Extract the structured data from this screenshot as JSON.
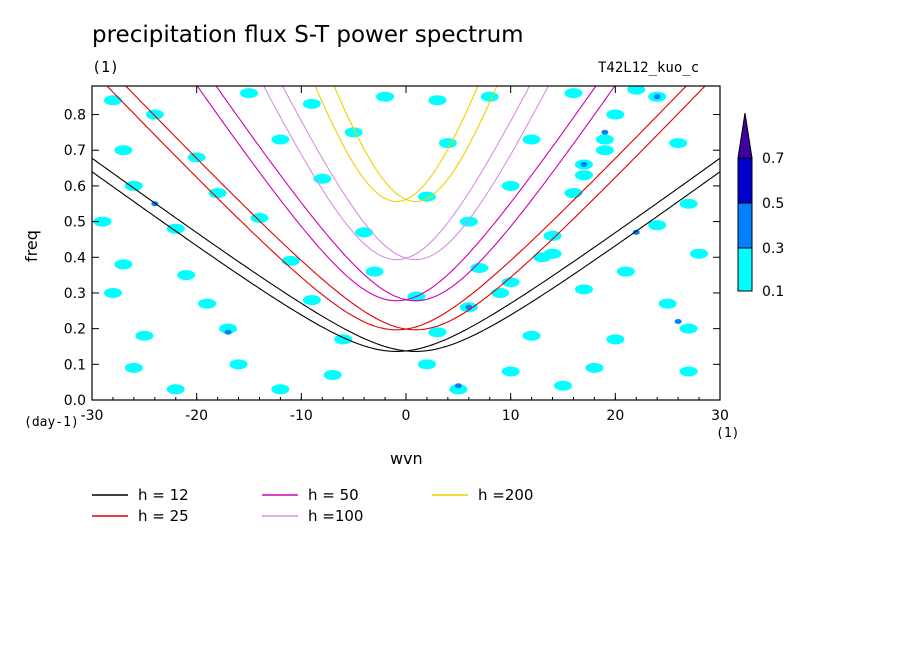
{
  "chart_data": {
    "type": "heatmap",
    "title": "precipitation flux S-T power spectrum",
    "subtitle": "(1)",
    "run_label": "T42L12_kuo_c",
    "xlabel": "wvn",
    "ylabel": "freq",
    "x_unit": "(1)",
    "y_unit": "(day-1)",
    "xlim": [
      -30,
      30
    ],
    "ylim": [
      0,
      0.88
    ],
    "x_ticks": [
      -30,
      -20,
      -10,
      0,
      10,
      20,
      30
    ],
    "y_ticks": [
      0.0,
      0.1,
      0.2,
      0.3,
      0.4,
      0.5,
      0.6,
      0.7,
      0.8
    ],
    "x_tick_labels": [
      "-30",
      "-20",
      "-10",
      "0",
      "10",
      "20",
      "30"
    ],
    "y_tick_labels": [
      "0.0",
      "0.1",
      "0.2",
      "0.3",
      "0.4",
      "0.5",
      "0.6",
      "0.7",
      "0.8"
    ],
    "colorbar": {
      "labels": [
        "0.1",
        "0.3",
        "0.5",
        "0.7"
      ],
      "colors": [
        "#00ffff",
        "#0080ff",
        "#0000cc",
        "#4000a0"
      ]
    },
    "contour_patches": [
      {
        "x": -28,
        "y": 0.84,
        "level": 0
      },
      {
        "x": -24,
        "y": 0.8,
        "level": 0
      },
      {
        "x": -15,
        "y": 0.86,
        "level": 0
      },
      {
        "x": -9,
        "y": 0.83,
        "level": 0
      },
      {
        "x": -2,
        "y": 0.85,
        "level": 0
      },
      {
        "x": 3,
        "y": 0.84,
        "level": 0
      },
      {
        "x": 8,
        "y": 0.85,
        "level": 0
      },
      {
        "x": 16,
        "y": 0.86,
        "level": 0
      },
      {
        "x": 22,
        "y": 0.87,
        "level": 0
      },
      {
        "x": -27,
        "y": 0.7,
        "level": 0
      },
      {
        "x": -20,
        "y": 0.68,
        "level": 0
      },
      {
        "x": -12,
        "y": 0.73,
        "level": 0
      },
      {
        "x": -5,
        "y": 0.75,
        "level": 0
      },
      {
        "x": 4,
        "y": 0.72,
        "level": 0
      },
      {
        "x": 12,
        "y": 0.73,
        "level": 0
      },
      {
        "x": 19,
        "y": 0.7,
        "level": 0
      },
      {
        "x": 26,
        "y": 0.72,
        "level": 0
      },
      {
        "x": -26,
        "y": 0.6,
        "level": 0
      },
      {
        "x": -18,
        "y": 0.58,
        "level": 0
      },
      {
        "x": -8,
        "y": 0.62,
        "level": 0
      },
      {
        "x": 2,
        "y": 0.57,
        "level": 0
      },
      {
        "x": 10,
        "y": 0.6,
        "level": 0
      },
      {
        "x": 17,
        "y": 0.63,
        "level": 0
      },
      {
        "x": 27,
        "y": 0.55,
        "level": 0
      },
      {
        "x": -29,
        "y": 0.5,
        "level": 0
      },
      {
        "x": -22,
        "y": 0.48,
        "level": 0
      },
      {
        "x": -14,
        "y": 0.51,
        "level": 0
      },
      {
        "x": -4,
        "y": 0.47,
        "level": 0
      },
      {
        "x": 6,
        "y": 0.5,
        "level": 0
      },
      {
        "x": 14,
        "y": 0.46,
        "level": 0
      },
      {
        "x": 24,
        "y": 0.49,
        "level": 0
      },
      {
        "x": -27,
        "y": 0.38,
        "level": 0
      },
      {
        "x": -21,
        "y": 0.35,
        "level": 0
      },
      {
        "x": -11,
        "y": 0.39,
        "level": 0
      },
      {
        "x": -3,
        "y": 0.36,
        "level": 0
      },
      {
        "x": 7,
        "y": 0.37,
        "level": 0
      },
      {
        "x": 13,
        "y": 0.4,
        "level": 0
      },
      {
        "x": 21,
        "y": 0.36,
        "level": 0
      },
      {
        "x": 28,
        "y": 0.41,
        "level": 0
      },
      {
        "x": -28,
        "y": 0.3,
        "level": 0
      },
      {
        "x": -19,
        "y": 0.27,
        "level": 0
      },
      {
        "x": -9,
        "y": 0.28,
        "level": 0
      },
      {
        "x": 1,
        "y": 0.29,
        "level": 0
      },
      {
        "x": 9,
        "y": 0.3,
        "level": 0
      },
      {
        "x": 17,
        "y": 0.31,
        "level": 0
      },
      {
        "x": 25,
        "y": 0.27,
        "level": 0
      },
      {
        "x": -25,
        "y": 0.18,
        "level": 0
      },
      {
        "x": -17,
        "y": 0.2,
        "level": 0
      },
      {
        "x": -6,
        "y": 0.17,
        "level": 0
      },
      {
        "x": 3,
        "y": 0.19,
        "level": 0
      },
      {
        "x": 12,
        "y": 0.18,
        "level": 0
      },
      {
        "x": 20,
        "y": 0.17,
        "level": 0
      },
      {
        "x": 27,
        "y": 0.2,
        "level": 0
      },
      {
        "x": -26,
        "y": 0.09,
        "level": 0
      },
      {
        "x": -16,
        "y": 0.1,
        "level": 0
      },
      {
        "x": -7,
        "y": 0.07,
        "level": 0
      },
      {
        "x": 2,
        "y": 0.1,
        "level": 0
      },
      {
        "x": 10,
        "y": 0.08,
        "level": 0
      },
      {
        "x": 18,
        "y": 0.09,
        "level": 0
      },
      {
        "x": 27,
        "y": 0.08,
        "level": 0
      },
      {
        "x": -22,
        "y": 0.03,
        "level": 0
      },
      {
        "x": -12,
        "y": 0.03,
        "level": 0
      },
      {
        "x": 5,
        "y": 0.03,
        "level": 0
      },
      {
        "x": 15,
        "y": 0.04,
        "level": 0
      },
      {
        "x": 6,
        "y": 0.26,
        "level": 0
      },
      {
        "x": 6,
        "y": 0.26,
        "level": 1
      },
      {
        "x": 10,
        "y": 0.33,
        "level": 0
      },
      {
        "x": 14,
        "y": 0.41,
        "level": 0
      },
      {
        "x": 16,
        "y": 0.58,
        "level": 0
      },
      {
        "x": 17,
        "y": 0.66,
        "level": 0
      },
      {
        "x": 17,
        "y": 0.66,
        "level": 1
      },
      {
        "x": 19,
        "y": 0.73,
        "level": 0
      },
      {
        "x": 19,
        "y": 0.75,
        "level": 1
      },
      {
        "x": 20,
        "y": 0.8,
        "level": 0
      },
      {
        "x": 24,
        "y": 0.85,
        "level": 0
      },
      {
        "x": 24,
        "y": 0.85,
        "level": 1
      },
      {
        "x": -17,
        "y": 0.19,
        "level": 1
      },
      {
        "x": -24,
        "y": 0.55,
        "level": 1
      },
      {
        "x": 26,
        "y": 0.22,
        "level": 1
      },
      {
        "x": 5,
        "y": 0.04,
        "level": 1
      },
      {
        "x": 22,
        "y": 0.47,
        "level": 1
      }
    ],
    "series": [
      {
        "name": "h = 12",
        "h": 12,
        "color": "#000000"
      },
      {
        "name": "h = 25",
        "h": 25,
        "color": "#e00000"
      },
      {
        "name": "h = 50",
        "h": 50,
        "color": "#d000b0"
      },
      {
        "name": "h =100",
        "h": 100,
        "color": "#d890e0"
      },
      {
        "name": "h =200",
        "h": 200,
        "color": "#f0d000"
      }
    ]
  }
}
